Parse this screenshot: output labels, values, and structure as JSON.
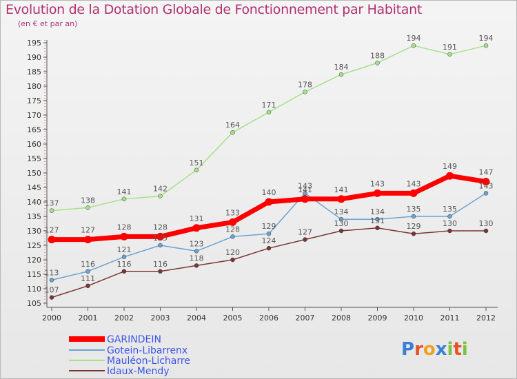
{
  "chart_data": {
    "type": "line",
    "title": "Evolution de la Dotation Globale de Fonctionnement par Habitant",
    "subtitle": "(en € et par an)",
    "xlabel": "",
    "ylabel": "",
    "ylim": [
      105,
      195
    ],
    "yticks": [
      105,
      110,
      115,
      120,
      125,
      130,
      135,
      140,
      145,
      150,
      155,
      160,
      165,
      170,
      175,
      180,
      185,
      190,
      195
    ],
    "categories": [
      "2000",
      "2001",
      "2002",
      "2003",
      "2004",
      "2005",
      "2006",
      "2007",
      "2008",
      "2009",
      "2010",
      "2011",
      "2012"
    ],
    "grid": false,
    "legend_position": "bottom-left",
    "series": [
      {
        "name": "GARINDEIN",
        "color": "#ff0000",
        "values": [
          127,
          127,
          128,
          128,
          131,
          133,
          140,
          141,
          141,
          143,
          143,
          149,
          147
        ]
      },
      {
        "name": "Gotein-Libarrenx",
        "color": "#6aa3d0",
        "values": [
          113,
          116,
          121,
          125,
          123,
          128,
          129,
          143,
          134,
          134,
          135,
          135,
          143
        ]
      },
      {
        "name": "Mauléon-Licharre",
        "color": "#a6e08a",
        "values": [
          137,
          138,
          141,
          142,
          151,
          164,
          171,
          178,
          184,
          188,
          194,
          191,
          194
        ]
      },
      {
        "name": "Idaux-Mendy",
        "color": "#7a3535",
        "values": [
          107,
          111,
          116,
          116,
          118,
          120,
          124,
          127,
          130,
          131,
          129,
          130,
          130
        ]
      }
    ]
  },
  "logo": {
    "letters": [
      {
        "ch": "P",
        "color": "#3a7fd5"
      },
      {
        "ch": "r",
        "color": "#e8502a"
      },
      {
        "ch": "o",
        "color": "#f0a020"
      },
      {
        "ch": "x",
        "color": "#3a7fd5"
      },
      {
        "ch": "i",
        "color": "#7cc242"
      },
      {
        "ch": "t",
        "color": "#e8502a"
      },
      {
        "ch": "i",
        "color": "#7cc242"
      }
    ]
  }
}
